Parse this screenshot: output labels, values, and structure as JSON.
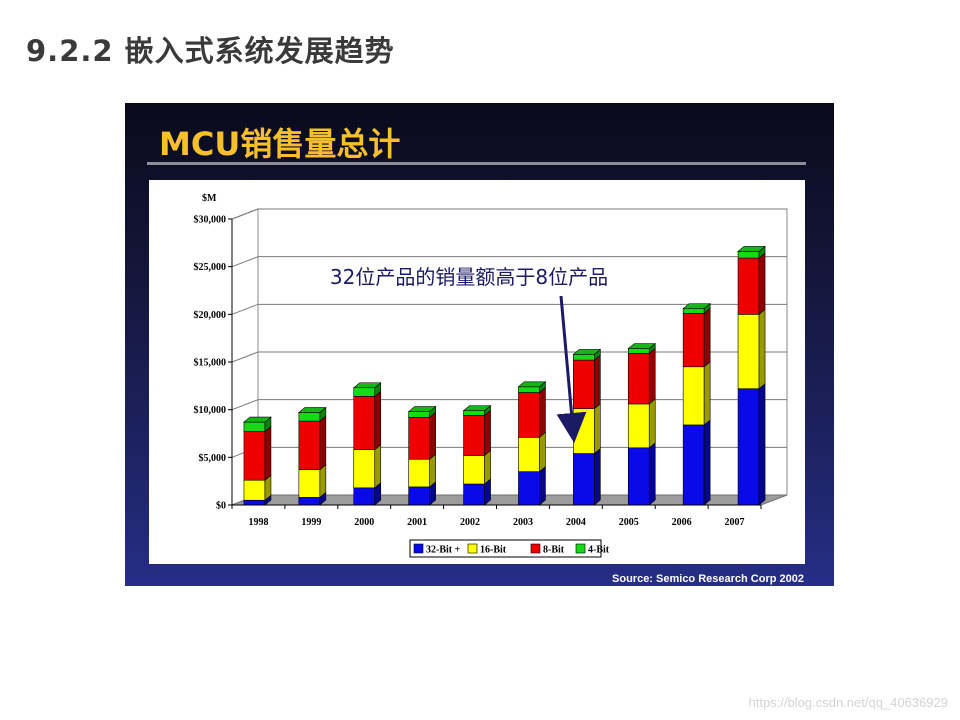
{
  "slide": {
    "title": "9.2.2 嵌入式系统发展趋势"
  },
  "panel": {
    "title": "MCU销售量总计",
    "source": "Source: Semico Research Corp 2002"
  },
  "watermark": "https://blog.csdn.net/qq_40636929",
  "colors": {
    "panel_title": "#f7c02a",
    "bit32": "#0a0ae8",
    "bit16": "#ffff00",
    "bit8": "#ee0000",
    "bit4": "#18d818",
    "annotation": "#1a1a66"
  },
  "chart_data": {
    "type": "bar",
    "stacked": true,
    "view": "3d",
    "ylabel": "$M",
    "ylim": [
      0,
      30000
    ],
    "ytick_values": [
      0,
      5000,
      10000,
      15000,
      20000,
      25000,
      30000
    ],
    "ytick_labels": [
      "$0",
      "$5,000",
      "$10,000",
      "$15,000",
      "$20,000",
      "$25,000",
      "$30,000"
    ],
    "grid": true,
    "legend_position": "bottom-center",
    "categories": [
      "1998",
      "1999",
      "2000",
      "2001",
      "2002",
      "2003",
      "2004",
      "2005",
      "2006",
      "2007"
    ],
    "series": [
      {
        "name": "32-Bit +",
        "color": "#0a0ae8",
        "values": [
          500,
          800,
          1800,
          1900,
          2200,
          3500,
          5400,
          6000,
          8400,
          12200
        ]
      },
      {
        "name": "16-Bit",
        "color": "#ffff00",
        "values": [
          2100,
          2900,
          4000,
          2900,
          3000,
          3600,
          4700,
          4600,
          6100,
          7800
        ]
      },
      {
        "name": "8-Bit",
        "color": "#ee0000",
        "values": [
          5100,
          5100,
          5600,
          4400,
          4200,
          4700,
          5100,
          5300,
          5600,
          5900
        ]
      },
      {
        "name": "4-Bit",
        "color": "#18d818",
        "values": [
          1000,
          900,
          900,
          600,
          500,
          600,
          600,
          500,
          500,
          700
        ]
      }
    ],
    "annotation": {
      "text": "32位产品的销量额高于8位产品",
      "points_to": "2004"
    }
  }
}
